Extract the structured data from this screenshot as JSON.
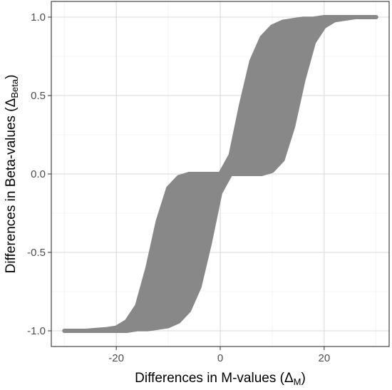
{
  "chart_data": {
    "type": "area",
    "title": "",
    "xlabel": "Differences in M-values (Δ",
    "xlabel_sub": "M",
    "xlabel_close": ")",
    "ylabel": "Differences in Beta-values (Δ",
    "ylabel_sub": "Beta",
    "ylabel_close": ")",
    "xlim": [
      -32.5,
      32.5
    ],
    "ylim": [
      -1.1,
      1.1
    ],
    "x_ticks": [
      -20,
      0,
      20
    ],
    "x_tick_labels": [
      "-20",
      "0",
      "20"
    ],
    "y_ticks": [
      -1.0,
      -0.5,
      0.0,
      0.5,
      1.0
    ],
    "y_tick_labels": [
      "-1.0",
      "-0.5",
      "0.0",
      "0.5",
      "1.0"
    ],
    "x_minor_ticks": [
      -30,
      -10,
      10,
      30
    ],
    "y_minor_ticks": [
      -0.75,
      -0.25,
      0.25,
      0.75
    ],
    "grid": true,
    "fill_color": "#888888",
    "series": [
      {
        "x": [
          -30,
          -26,
          -22,
          -20,
          -18,
          -16,
          -14,
          -12,
          -10,
          -8,
          -6,
          -4,
          -2,
          0,
          2,
          4,
          6,
          8,
          10,
          12,
          14,
          16,
          18,
          20,
          22,
          24,
          26,
          28,
          30
        ],
        "upper": [
          -1.0,
          -1.0,
          -0.99,
          -0.98,
          -0.94,
          -0.84,
          -0.6,
          -0.3,
          -0.09,
          -0.02,
          0.0,
          0.0,
          0.0,
          0.0,
          0.12,
          0.44,
          0.72,
          0.87,
          0.94,
          0.97,
          0.98,
          0.99,
          0.99,
          1.0,
          1.0,
          1.0,
          1.0,
          1.0,
          1.0
        ],
        "lower": [
          -1.0,
          -1.0,
          -1.0,
          -1.0,
          -1.0,
          -0.99,
          -0.99,
          -0.98,
          -0.97,
          -0.94,
          -0.87,
          -0.72,
          -0.44,
          -0.12,
          0.0,
          0.0,
          0.0,
          0.0,
          0.02,
          0.09,
          0.3,
          0.6,
          0.84,
          0.94,
          0.98,
          0.99,
          1.0,
          1.0,
          1.0
        ]
      }
    ]
  }
}
